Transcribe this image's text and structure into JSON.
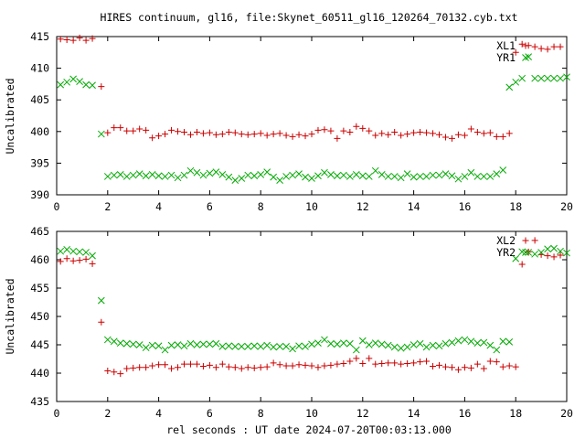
{
  "title": "HIRES continuum, gl16, file:Skynet_60511_gl16_120264_70132.cyb.txt",
  "xlabel": "rel seconds : UT date 2024-07-20T00:03:13.000",
  "colors": {
    "red": "#cc0000",
    "green": "#00aa00",
    "axis": "#000000"
  },
  "chart_data": [
    {
      "type": "scatter",
      "ylabel": "Uncalibrated",
      "xlim": [
        0,
        20
      ],
      "ylim": [
        390,
        415
      ],
      "xticks": [
        0,
        2,
        4,
        6,
        8,
        10,
        12,
        14,
        16,
        18,
        20
      ],
      "yticks": [
        390,
        395,
        400,
        405,
        410,
        415
      ],
      "grid": false,
      "legend_position": "top-right",
      "series": [
        {
          "name": "XL1",
          "marker": "plus",
          "color": "#cc0000",
          "x": [
            0.15,
            0.4,
            0.65,
            0.9,
            1.15,
            1.4,
            1.75,
            2.0,
            2.25,
            2.5,
            2.75,
            3.0,
            3.25,
            3.5,
            3.75,
            4.0,
            4.25,
            4.5,
            4.75,
            5.0,
            5.25,
            5.5,
            5.75,
            6.0,
            6.25,
            6.5,
            6.75,
            7.0,
            7.25,
            7.5,
            7.75,
            8.0,
            8.25,
            8.5,
            8.75,
            9.0,
            9.25,
            9.5,
            9.75,
            10.0,
            10.25,
            10.5,
            10.75,
            11.0,
            11.25,
            11.5,
            11.75,
            12.0,
            12.25,
            12.5,
            12.75,
            13.0,
            13.25,
            13.5,
            13.75,
            14.0,
            14.25,
            14.5,
            14.75,
            15.0,
            15.25,
            15.5,
            15.75,
            16.0,
            16.25,
            16.5,
            16.75,
            17.0,
            17.25,
            17.5,
            17.75,
            18.0,
            18.25,
            18.5,
            18.75,
            19.0,
            19.25,
            19.5,
            19.75
          ],
          "y": [
            414.6,
            414.5,
            414.4,
            414.8,
            414.4,
            414.7,
            407.1,
            399.8,
            400.6,
            400.6,
            400.1,
            400.1,
            400.4,
            400.2,
            399.0,
            399.3,
            399.6,
            400.2,
            400.0,
            399.9,
            399.5,
            399.9,
            399.7,
            399.8,
            399.5,
            399.6,
            399.9,
            399.8,
            399.6,
            399.5,
            399.6,
            399.7,
            399.4,
            399.6,
            399.7,
            399.4,
            399.2,
            399.5,
            399.3,
            399.6,
            400.2,
            400.3,
            400.1,
            398.9,
            400.1,
            399.9,
            400.8,
            400.5,
            400.1,
            399.4,
            399.7,
            399.5,
            399.9,
            399.4,
            399.6,
            399.8,
            399.9,
            399.8,
            399.7,
            399.5,
            399.1,
            398.9,
            399.5,
            399.4,
            400.4,
            399.9,
            399.7,
            399.8,
            399.2,
            399.2,
            399.7,
            412.5,
            413.8,
            413.6,
            413.4,
            413.1,
            413.0,
            413.4,
            413.4
          ]
        },
        {
          "name": "YR1",
          "marker": "cross",
          "color": "#00aa00",
          "x": [
            0.15,
            0.4,
            0.65,
            0.9,
            1.15,
            1.4,
            1.75,
            2.0,
            2.25,
            2.5,
            2.75,
            3.0,
            3.25,
            3.5,
            3.75,
            4.0,
            4.25,
            4.5,
            4.75,
            5.0,
            5.25,
            5.5,
            5.75,
            6.0,
            6.25,
            6.5,
            6.75,
            7.0,
            7.25,
            7.5,
            7.75,
            8.0,
            8.25,
            8.5,
            8.75,
            9.0,
            9.25,
            9.5,
            9.75,
            10.0,
            10.25,
            10.5,
            10.75,
            11.0,
            11.25,
            11.5,
            11.75,
            12.0,
            12.25,
            12.5,
            12.75,
            13.0,
            13.25,
            13.5,
            13.75,
            14.0,
            14.25,
            14.5,
            14.75,
            15.0,
            15.25,
            15.5,
            15.75,
            16.0,
            16.25,
            16.5,
            16.75,
            17.0,
            17.25,
            17.5,
            17.75,
            18.0,
            18.25,
            18.5,
            18.75,
            19.0,
            19.25,
            19.5,
            19.75,
            20.0
          ],
          "y": [
            407.4,
            407.8,
            408.3,
            407.9,
            407.4,
            407.3,
            399.6,
            392.9,
            393.1,
            393.2,
            392.9,
            393.1,
            393.3,
            393.0,
            393.2,
            393.0,
            392.9,
            393.1,
            392.7,
            393.1,
            393.8,
            393.5,
            393.1,
            393.4,
            393.6,
            393.2,
            392.8,
            392.3,
            392.6,
            393.1,
            393.0,
            393.2,
            393.6,
            392.8,
            392.3,
            392.9,
            393.1,
            393.3,
            392.8,
            392.6,
            393.0,
            393.5,
            393.2,
            393.0,
            393.1,
            392.9,
            393.2,
            393.0,
            392.9,
            393.8,
            393.2,
            392.9,
            392.9,
            392.7,
            393.3,
            392.8,
            392.9,
            392.9,
            393.1,
            393.1,
            393.3,
            393.0,
            392.5,
            392.9,
            393.5,
            392.9,
            392.9,
            392.9,
            393.3,
            393.9,
            407.0,
            407.8,
            408.4,
            411.8,
            408.4,
            408.4,
            408.4,
            408.4,
            408.4,
            408.6
          ]
        }
      ]
    },
    {
      "type": "scatter",
      "ylabel": "Uncalibrated",
      "xlim": [
        0,
        20
      ],
      "ylim": [
        435,
        465
      ],
      "xticks": [
        0,
        2,
        4,
        6,
        8,
        10,
        12,
        14,
        16,
        18,
        20
      ],
      "yticks": [
        435,
        440,
        445,
        450,
        455,
        460,
        465
      ],
      "grid": false,
      "legend_position": "top-right",
      "series": [
        {
          "name": "XL2",
          "marker": "plus",
          "color": "#cc0000",
          "x": [
            0.15,
            0.4,
            0.65,
            0.9,
            1.15,
            1.4,
            1.75,
            2.0,
            2.25,
            2.5,
            2.75,
            3.0,
            3.25,
            3.5,
            3.75,
            4.0,
            4.25,
            4.5,
            4.75,
            5.0,
            5.25,
            5.5,
            5.75,
            6.0,
            6.25,
            6.5,
            6.75,
            7.0,
            7.25,
            7.5,
            7.75,
            8.0,
            8.25,
            8.5,
            8.75,
            9.0,
            9.25,
            9.5,
            9.75,
            10.0,
            10.25,
            10.5,
            10.75,
            11.0,
            11.25,
            11.5,
            11.75,
            12.0,
            12.25,
            12.5,
            12.75,
            13.0,
            13.25,
            13.5,
            13.75,
            14.0,
            14.25,
            14.5,
            14.75,
            15.0,
            15.25,
            15.5,
            15.75,
            16.0,
            16.25,
            16.5,
            16.75,
            17.0,
            17.25,
            17.5,
            17.75,
            18.0,
            18.25,
            18.5,
            18.75,
            19.0,
            19.25,
            19.5,
            19.75
          ],
          "y": [
            459.7,
            460.2,
            459.8,
            459.9,
            460.1,
            459.3,
            449.0,
            440.4,
            440.2,
            439.9,
            440.8,
            440.9,
            441.0,
            441.0,
            441.3,
            441.5,
            441.5,
            440.8,
            441.0,
            441.6,
            441.6,
            441.6,
            441.2,
            441.4,
            441.0,
            441.6,
            441.1,
            441.0,
            440.8,
            441.0,
            440.9,
            441.0,
            441.1,
            441.8,
            441.5,
            441.3,
            441.3,
            441.5,
            441.4,
            441.3,
            441.0,
            441.3,
            441.4,
            441.6,
            441.7,
            442.1,
            442.6,
            441.7,
            442.6,
            441.6,
            441.7,
            441.8,
            441.8,
            441.6,
            441.7,
            441.8,
            442.0,
            442.1,
            441.2,
            441.4,
            441.1,
            441.0,
            440.6,
            441.0,
            440.9,
            441.6,
            440.8,
            442.1,
            442.0,
            441.1,
            441.3,
            441.1,
            459.2,
            461.4,
            463.4,
            460.9,
            460.7,
            460.5,
            460.8
          ]
        },
        {
          "name": "YR2",
          "marker": "cross",
          "color": "#00aa00",
          "x": [
            0.15,
            0.4,
            0.65,
            0.9,
            1.15,
            1.4,
            1.75,
            2.0,
            2.25,
            2.5,
            2.75,
            3.0,
            3.25,
            3.5,
            3.75,
            4.0,
            4.25,
            4.5,
            4.75,
            5.0,
            5.25,
            5.5,
            5.75,
            6.0,
            6.25,
            6.5,
            6.75,
            7.0,
            7.25,
            7.5,
            7.75,
            8.0,
            8.25,
            8.5,
            8.75,
            9.0,
            9.25,
            9.5,
            9.75,
            10.0,
            10.25,
            10.5,
            10.75,
            11.0,
            11.25,
            11.5,
            11.75,
            12.0,
            12.25,
            12.5,
            12.75,
            13.0,
            13.25,
            13.5,
            13.75,
            14.0,
            14.25,
            14.5,
            14.75,
            15.0,
            15.25,
            15.5,
            15.75,
            16.0,
            16.25,
            16.5,
            16.75,
            17.0,
            17.25,
            17.5,
            17.75,
            18.0,
            18.25,
            18.5,
            18.75,
            19.0,
            19.25,
            19.5,
            19.75,
            20.0
          ],
          "y": [
            461.5,
            461.8,
            461.5,
            461.4,
            461.3,
            460.7,
            452.8,
            445.9,
            445.6,
            445.3,
            445.2,
            445.1,
            445.0,
            444.5,
            444.9,
            444.8,
            444.1,
            444.9,
            445.0,
            444.8,
            445.2,
            445.0,
            445.1,
            445.1,
            445.2,
            444.7,
            444.8,
            444.7,
            444.7,
            444.7,
            444.8,
            444.7,
            444.9,
            444.6,
            444.7,
            444.7,
            444.3,
            444.8,
            444.7,
            445.1,
            445.3,
            445.9,
            445.2,
            445.1,
            445.3,
            445.2,
            444.1,
            445.7,
            445.0,
            445.3,
            445.1,
            444.9,
            444.6,
            444.4,
            444.6,
            445.0,
            445.2,
            444.6,
            444.9,
            444.8,
            445.2,
            445.4,
            445.7,
            445.9,
            445.6,
            445.3,
            445.4,
            444.9,
            444.1,
            445.6,
            445.5,
            460.2,
            461.4,
            461.3,
            461.0,
            461.3,
            461.9,
            462.0,
            461.5,
            461.2
          ]
        }
      ]
    }
  ]
}
